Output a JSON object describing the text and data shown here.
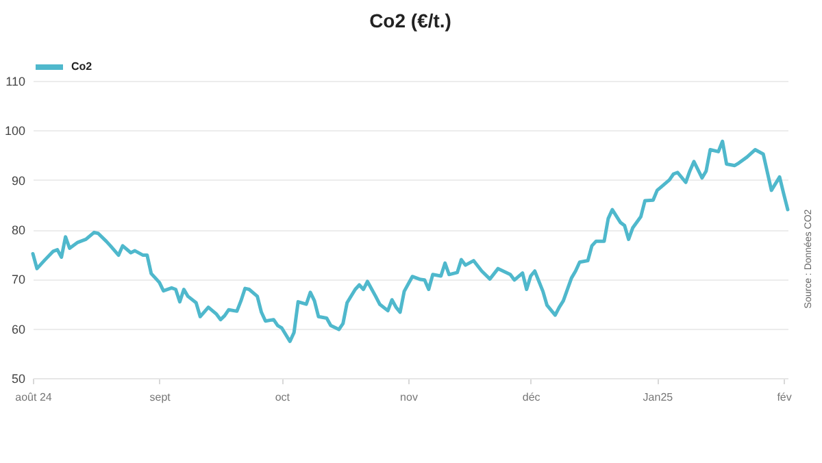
{
  "chart_data": {
    "type": "line",
    "title": "Co2 (€/t.)",
    "annotations": [
      "Source : Données CO2"
    ],
    "x": [
      "2024-08-01",
      "2024-08-02",
      "2024-08-04",
      "2024-08-06",
      "2024-08-07",
      "2024-08-08",
      "2024-08-09",
      "2024-08-10",
      "2024-08-12",
      "2024-08-14",
      "2024-08-16",
      "2024-08-17",
      "2024-08-19",
      "2024-08-20",
      "2024-08-22",
      "2024-08-23",
      "2024-08-25",
      "2024-08-26",
      "2024-08-28",
      "2024-08-29",
      "2024-08-30",
      "2024-09-01",
      "2024-09-02",
      "2024-09-04",
      "2024-09-05",
      "2024-09-06",
      "2024-09-07",
      "2024-09-08",
      "2024-09-10",
      "2024-09-11",
      "2024-09-13",
      "2024-09-15",
      "2024-09-16",
      "2024-09-17",
      "2024-09-18",
      "2024-09-20",
      "2024-09-21",
      "2024-09-22",
      "2024-09-23",
      "2024-09-25",
      "2024-09-26",
      "2024-09-27",
      "2024-09-29",
      "2024-09-30",
      "2024-10-01",
      "2024-10-03",
      "2024-10-04",
      "2024-10-05",
      "2024-10-07",
      "2024-10-08",
      "2024-10-09",
      "2024-10-10",
      "2024-10-12",
      "2024-10-13",
      "2024-10-15",
      "2024-10-16",
      "2024-10-17",
      "2024-10-19",
      "2024-10-20",
      "2024-10-21",
      "2024-10-22",
      "2024-10-24",
      "2024-10-25",
      "2024-10-27",
      "2024-10-28",
      "2024-10-29",
      "2024-10-30",
      "2024-10-31",
      "2024-11-02",
      "2024-11-04",
      "2024-11-05",
      "2024-11-06",
      "2024-11-07",
      "2024-11-09",
      "2024-11-10",
      "2024-11-11",
      "2024-11-13",
      "2024-11-14",
      "2024-11-15",
      "2024-11-17",
      "2024-11-19",
      "2024-11-21",
      "2024-11-23",
      "2024-11-26",
      "2024-11-27",
      "2024-11-29",
      "2024-11-30",
      "2024-12-01",
      "2024-12-02",
      "2024-12-04",
      "2024-12-05",
      "2024-12-07",
      "2024-12-08",
      "2024-12-09",
      "2024-12-11",
      "2024-12-12",
      "2024-12-13",
      "2024-12-15",
      "2024-12-16",
      "2024-12-17",
      "2024-12-19",
      "2024-12-20",
      "2024-12-21",
      "2024-12-23",
      "2024-12-24",
      "2024-12-25",
      "2024-12-26",
      "2024-12-28",
      "2024-12-29",
      "2024-12-31",
      "2025-01-01",
      "2025-01-02",
      "2025-01-04",
      "2025-01-05",
      "2025-01-06",
      "2025-01-08",
      "2025-01-09",
      "2025-01-10",
      "2025-01-12",
      "2025-01-13",
      "2025-01-14",
      "2025-01-16",
      "2025-01-17",
      "2025-01-18",
      "2025-01-20",
      "2025-01-21",
      "2025-01-23",
      "2025-01-25",
      "2025-01-27",
      "2025-01-29",
      "2025-01-31",
      "2025-02-01",
      "2025-02-02"
    ],
    "series": [
      {
        "name": "Co2",
        "color": "#4fb8cc",
        "values": [
          75.1,
          72.1,
          73.9,
          75.6,
          75.9,
          74.4,
          78.5,
          76.2,
          77.4,
          78.0,
          79.4,
          79.2,
          77.6,
          76.7,
          74.8,
          76.7,
          75.3,
          75.7,
          74.8,
          74.8,
          71.1,
          69.3,
          67.6,
          68.2,
          67.9,
          65.4,
          67.9,
          66.5,
          65.2,
          62.4,
          64.3,
          62.9,
          61.8,
          62.6,
          63.8,
          63.5,
          65.6,
          68.1,
          67.9,
          66.5,
          63.3,
          61.5,
          61.8,
          60.6,
          60.1,
          57.4,
          59.2,
          65.4,
          64.9,
          67.3,
          65.6,
          62.4,
          62.1,
          60.6,
          59.8,
          61.0,
          65.2,
          67.9,
          68.8,
          67.9,
          69.5,
          66.5,
          64.9,
          63.6,
          65.8,
          64.3,
          63.3,
          67.5,
          70.5,
          69.9,
          69.8,
          67.9,
          70.9,
          70.6,
          73.2,
          70.9,
          71.3,
          73.9,
          72.8,
          73.7,
          71.6,
          70.0,
          72.1,
          70.9,
          69.8,
          71.2,
          67.9,
          70.6,
          71.6,
          67.5,
          64.7,
          62.7,
          64.3,
          65.6,
          70.2,
          71.6,
          73.4,
          73.7,
          76.7,
          77.6,
          77.6,
          82.2,
          84.0,
          81.4,
          80.8,
          78.0,
          80.3,
          82.6,
          85.8,
          85.9,
          87.9,
          88.6,
          90.0,
          91.2,
          91.5,
          89.5,
          91.8,
          93.7,
          90.4,
          91.8,
          96.1,
          95.7,
          97.8,
          93.2,
          92.9,
          93.4,
          94.6,
          96.1,
          95.2,
          87.9,
          90.6,
          87.2,
          84.0
        ]
      }
    ],
    "xlim": [
      "2024-08-01",
      "2025-02-02"
    ],
    "xticks": [
      {
        "value": "2024-08-01",
        "label": "août 24"
      },
      {
        "value": "2024-09-01",
        "label": "sept"
      },
      {
        "value": "2024-10-01",
        "label": "oct"
      },
      {
        "value": "2024-11-01",
        "label": "nov"
      },
      {
        "value": "2024-12-01",
        "label": "déc"
      },
      {
        "value": "2025-01-01",
        "label": "Jan25"
      },
      {
        "value": "2025-02-01",
        "label": "fév"
      }
    ],
    "ylim": [
      50,
      110
    ],
    "yticks": [
      50,
      60,
      70,
      80,
      90,
      100,
      110
    ],
    "grid": "y",
    "legend": "top",
    "line_style": "solid",
    "marker": "none"
  }
}
